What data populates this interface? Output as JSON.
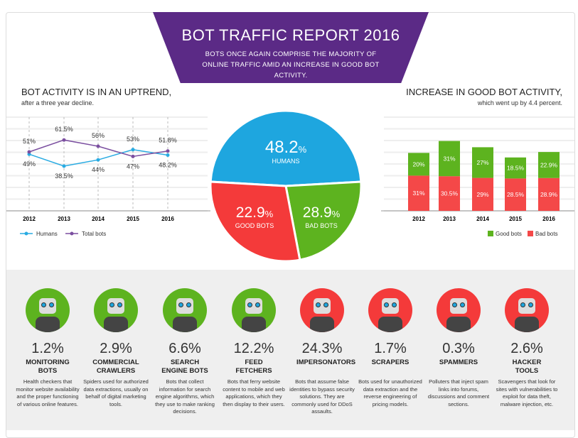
{
  "header": {
    "title": "BOT TRAFFIC REPORT 2016",
    "subtitle": "BOTS ONCE AGAIN COMPRISE THE MAJORITY OF ONLINE TRAFFIC AMID AN INCREASE IN GOOD BOT ACTIVITY."
  },
  "left": {
    "title": "BOT ACTIVITY IS IN AN UPTREND,",
    "subtitle": "after a three year decline."
  },
  "right": {
    "title": "INCREASE IN GOOD BOT ACTIVITY,",
    "subtitle": "which went up by 4.4 percent."
  },
  "chart_data": [
    {
      "type": "line",
      "categories": [
        "2012",
        "2013",
        "2014",
        "2015",
        "2016"
      ],
      "series": [
        {
          "name": "Humans",
          "values": [
            49,
            38.5,
            44,
            53,
            48.2
          ],
          "labels": [
            "49%",
            "38.5%",
            "44%",
            "53%",
            "48.2%"
          ],
          "color": "#29abe2"
        },
        {
          "name": "Total bots",
          "values": [
            51,
            61.5,
            56,
            47,
            51.8
          ],
          "labels": [
            "51%",
            "61.5%",
            "56%",
            "47%",
            "51.8%"
          ],
          "color": "#7b4fa0"
        }
      ],
      "legend": "bottom-left",
      "grid": true
    },
    {
      "type": "bar",
      "stacked": true,
      "categories": [
        "2012",
        "2013",
        "2014",
        "2015",
        "2016"
      ],
      "series": [
        {
          "name": "Bad bots",
          "values": [
            31,
            30.5,
            29,
            28.5,
            28.9
          ],
          "labels": [
            "31%",
            "30.5%",
            "29%",
            "28.5%",
            "28.9%"
          ],
          "color": "#f44848"
        },
        {
          "name": "Good bots",
          "values": [
            20,
            31,
            27,
            18.5,
            22.9
          ],
          "labels": [
            "20%",
            "31%",
            "27%",
            "18.5%",
            "22.9%"
          ],
          "color": "#5db31f"
        }
      ],
      "legend": "bottom-right",
      "grid": true
    },
    {
      "type": "pie",
      "slices": [
        {
          "label": "HUMANS",
          "value": 48.2,
          "num": "48.2",
          "color": "#1ea6df"
        },
        {
          "label": "GOOD BOTS",
          "value": 22.9,
          "num": "22.9",
          "color": "#5db31f"
        },
        {
          "label": "BAD BOTS",
          "value": 28.9,
          "num": "28.9",
          "color": "#f43a3a"
        }
      ],
      "unit": "%"
    }
  ],
  "bots": [
    {
      "pct": "1.2%",
      "name": "MONITORING BOTS",
      "desc": "Health checkers that monitor website availability and the proper functioning of various online features.",
      "color": "#5db31f",
      "icon": "nurse-robot-icon"
    },
    {
      "pct": "2.9%",
      "name": "COMMERCIAL CRAWLERS",
      "desc": "Spiders used for authorized data extractions, usually on behalf of digital marketing tools.",
      "color": "#5db31f",
      "icon": "businessman-robot-icon"
    },
    {
      "pct": "6.6%",
      "name": "SEARCH ENGINE BOTS",
      "desc": "Bots that collect information for search engine algorithms, which they use to make ranking decisions.",
      "color": "#5db31f",
      "icon": "detective-robot-icon"
    },
    {
      "pct": "12.2%",
      "name": "FEED FETCHERS",
      "desc": "Bots that ferry website content to mobile and web applications, which they then display to their users.",
      "color": "#5db31f",
      "icon": "courier-robot-icon"
    },
    {
      "pct": "24.3%",
      "name": "IMPERSONATORS",
      "desc": "Bots that assume false identities to bypass security solutions. They are commonly used for DDoS assaults.",
      "color": "#f43a3a",
      "icon": "disguised-robot-icon"
    },
    {
      "pct": "1.7%",
      "name": "SCRAPERS",
      "desc": "Bots used for unauthorized data extraction and the reverse engineering of pricing models.",
      "color": "#f43a3a",
      "icon": "burglar-robot-icon"
    },
    {
      "pct": "0.3%",
      "name": "SPAMMERS",
      "desc": "Polluters that inject spam links into forums, discussions and comment sections.",
      "color": "#f43a3a",
      "icon": "zombie-robot-icon"
    },
    {
      "pct": "2.6%",
      "name": "HACKER TOOLS",
      "desc": "Scavengers that look for sites with vulnerabilities to exploit for data theft, malware injection, etc.",
      "color": "#f43a3a",
      "icon": "hooded-robot-icon"
    }
  ]
}
